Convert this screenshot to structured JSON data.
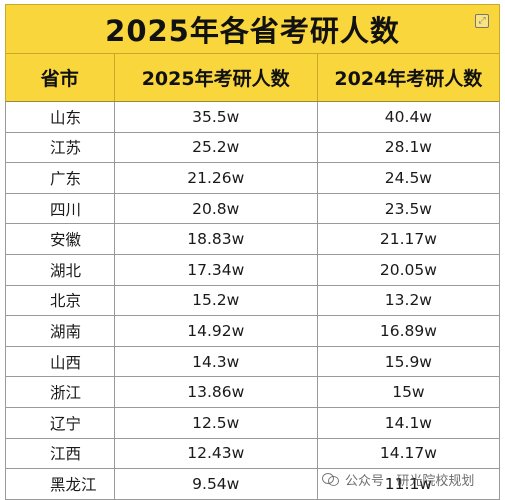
{
  "title": "2025年各省考研人数",
  "columns": [
    "省市",
    "2025年考研人数",
    "2024年考研人数"
  ],
  "rows": [
    {
      "province": "山东",
      "y2025": "35.5w",
      "y2024": "40.4w"
    },
    {
      "province": "江苏",
      "y2025": "25.2w",
      "y2024": "28.1w"
    },
    {
      "province": "广东",
      "y2025": "21.26w",
      "y2024": "24.5w"
    },
    {
      "province": "四川",
      "y2025": "20.8w",
      "y2024": "23.5w"
    },
    {
      "province": "安徽",
      "y2025": "18.83w",
      "y2024": "21.17w"
    },
    {
      "province": "湖北",
      "y2025": "17.34w",
      "y2024": "20.05w"
    },
    {
      "province": "北京",
      "y2025": "15.2w",
      "y2024": "13.2w"
    },
    {
      "province": "湖南",
      "y2025": "14.92w",
      "y2024": "16.89w"
    },
    {
      "province": "山西",
      "y2025": "14.3w",
      "y2024": "15.9w"
    },
    {
      "province": "浙江",
      "y2025": "13.86w",
      "y2024": "15w"
    },
    {
      "province": "辽宁",
      "y2025": "12.5w",
      "y2024": "14.1w"
    },
    {
      "province": "江西",
      "y2025": "12.43w",
      "y2024": "14.17w"
    },
    {
      "province": "黑龙江",
      "y2025": "9.54w",
      "y2024": "11.1w"
    }
  ],
  "watermark": "公众号 · 研光院校规划",
  "colors": {
    "header_bg": "#f8d63c",
    "grid": "#9a9a9a"
  }
}
